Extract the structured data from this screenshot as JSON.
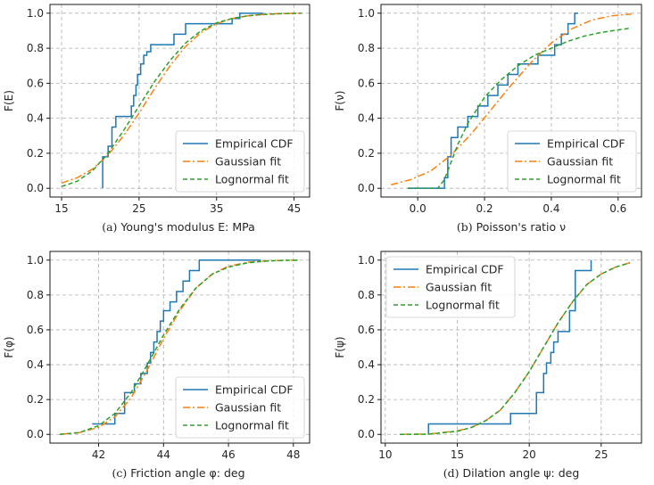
{
  "chart_data": [
    {
      "type": "line",
      "caption_prefix": "(a) ",
      "caption": "Young's modulus E: MPa",
      "ylabel": "F(E)",
      "xlim": [
        13.5,
        47
      ],
      "ylim": [
        -0.05,
        1.05
      ],
      "xticks": [
        15,
        25,
        35,
        45
      ],
      "xtick_labels": [
        "15",
        "25",
        "35",
        "45"
      ],
      "yticks": [
        0,
        0.2,
        0.4,
        0.6,
        0.8,
        1.0
      ],
      "ytick_labels": [
        "0.0",
        "0.2",
        "0.4",
        "0.6",
        "0.8",
        "1.0"
      ],
      "legend_position": "lower-right",
      "series": [
        {
          "name": "Empirical CDF",
          "style": "step",
          "color": "#1f77b4",
          "x": [
            20.3,
            20.3,
            21.0,
            21.5,
            22.0,
            24.0,
            24.3,
            24.6,
            24.8,
            25.2,
            25.6,
            26.0,
            26.5,
            27.5,
            29.5,
            31.0,
            33.0,
            37.0,
            38.0,
            41.0
          ],
          "y": [
            0.0,
            0.18,
            0.24,
            0.35,
            0.41,
            0.47,
            0.53,
            0.59,
            0.65,
            0.71,
            0.76,
            0.78,
            0.82,
            0.82,
            0.88,
            0.94,
            0.94,
            0.97,
            1.0,
            1.0
          ]
        },
        {
          "name": "Gaussian fit",
          "style": "dashdot",
          "color": "#ff7f0e",
          "x": [
            15,
            17,
            19,
            21,
            23,
            25,
            27,
            29,
            31,
            33,
            35,
            37,
            39,
            41,
            43,
            45,
            46
          ],
          "y": [
            0.03,
            0.06,
            0.11,
            0.19,
            0.3,
            0.43,
            0.57,
            0.7,
            0.81,
            0.89,
            0.94,
            0.97,
            0.985,
            0.993,
            0.997,
            0.999,
            1.0
          ]
        },
        {
          "name": "Lognormal fit",
          "style": "dashed",
          "color": "#2ca02c",
          "x": [
            15,
            17,
            19,
            21,
            23,
            25,
            27,
            29,
            31,
            33,
            35,
            37,
            39,
            41,
            43,
            45,
            46
          ],
          "y": [
            0.01,
            0.04,
            0.1,
            0.2,
            0.33,
            0.47,
            0.61,
            0.73,
            0.83,
            0.9,
            0.945,
            0.97,
            0.985,
            0.993,
            0.997,
            0.999,
            1.0
          ]
        }
      ]
    },
    {
      "type": "line",
      "caption_prefix": "(b) ",
      "caption": "Poisson's ratio ν",
      "ylabel": "F(ν)",
      "xlim": [
        -0.11,
        0.67
      ],
      "ylim": [
        -0.05,
        1.05
      ],
      "xticks": [
        0.0,
        0.2,
        0.4,
        0.6
      ],
      "xtick_labels": [
        "0.0",
        "0.2",
        "0.4",
        "0.6"
      ],
      "yticks": [
        0,
        0.2,
        0.4,
        0.6,
        0.8,
        1.0
      ],
      "ytick_labels": [
        "0.0",
        "0.2",
        "0.4",
        "0.6",
        "0.8",
        "1.0"
      ],
      "legend_position": "lower-right",
      "series": [
        {
          "name": "Empirical CDF",
          "style": "step",
          "color": "#1f77b4",
          "x": [
            -0.03,
            0.07,
            0.08,
            0.09,
            0.1,
            0.12,
            0.15,
            0.18,
            0.21,
            0.24,
            0.27,
            0.3,
            0.33,
            0.36,
            0.38,
            0.41,
            0.43,
            0.45,
            0.47,
            0.48
          ],
          "y": [
            0.0,
            0.0,
            0.06,
            0.18,
            0.29,
            0.35,
            0.41,
            0.47,
            0.53,
            0.59,
            0.65,
            0.71,
            0.71,
            0.76,
            0.76,
            0.82,
            0.88,
            0.94,
            1.0,
            1.0
          ]
        },
        {
          "name": "Gaussian fit",
          "style": "dashdot",
          "color": "#ff7f0e",
          "x": [
            -0.08,
            -0.02,
            0.04,
            0.1,
            0.16,
            0.22,
            0.28,
            0.34,
            0.4,
            0.46,
            0.52,
            0.58,
            0.64
          ],
          "y": [
            0.02,
            0.05,
            0.1,
            0.19,
            0.31,
            0.45,
            0.59,
            0.72,
            0.83,
            0.91,
            0.96,
            0.985,
            0.995
          ]
        },
        {
          "name": "Lognormal fit",
          "style": "dashed",
          "color": "#2ca02c",
          "x": [
            -0.03,
            0.06,
            0.08,
            0.1,
            0.12,
            0.15,
            0.2,
            0.25,
            0.3,
            0.35,
            0.4,
            0.45,
            0.5,
            0.55,
            0.6,
            0.64
          ],
          "y": [
            0.0,
            0.0,
            0.05,
            0.15,
            0.25,
            0.37,
            0.52,
            0.62,
            0.7,
            0.76,
            0.8,
            0.84,
            0.87,
            0.89,
            0.905,
            0.915
          ]
        }
      ]
    },
    {
      "type": "line",
      "caption_prefix": "(c) ",
      "caption": "Friction angle φ: deg",
      "ylabel": "F(φ)",
      "xlim": [
        40.5,
        48.5
      ],
      "ylim": [
        -0.05,
        1.05
      ],
      "xticks": [
        42,
        44,
        46,
        48
      ],
      "xtick_labels": [
        "42",
        "44",
        "46",
        "48"
      ],
      "yticks": [
        0,
        0.2,
        0.4,
        0.6,
        0.8,
        1.0
      ],
      "ytick_labels": [
        "0.0",
        "0.2",
        "0.4",
        "0.6",
        "0.8",
        "1.0"
      ],
      "legend_position": "lower-right",
      "series": [
        {
          "name": "Empirical CDF",
          "style": "step",
          "color": "#1f77b4",
          "x": [
            41.8,
            42.5,
            42.8,
            43.1,
            43.3,
            43.5,
            43.6,
            43.7,
            43.8,
            43.9,
            44.0,
            44.2,
            44.4,
            44.6,
            44.8,
            45.1,
            47.0
          ],
          "y": [
            0.06,
            0.12,
            0.24,
            0.29,
            0.35,
            0.41,
            0.47,
            0.53,
            0.59,
            0.65,
            0.71,
            0.76,
            0.82,
            0.88,
            0.94,
            1.0,
            1.0
          ]
        },
        {
          "name": "Gaussian fit",
          "style": "dashdot",
          "color": "#ff7f0e",
          "x": [
            40.8,
            41.4,
            42.0,
            42.5,
            43.0,
            43.5,
            44.0,
            44.5,
            45.0,
            45.5,
            46.0,
            46.6,
            47.2,
            47.8,
            48.2
          ],
          "y": [
            0.0,
            0.01,
            0.04,
            0.1,
            0.21,
            0.37,
            0.55,
            0.71,
            0.84,
            0.92,
            0.965,
            0.988,
            0.996,
            0.999,
            1.0
          ]
        },
        {
          "name": "Lognormal fit",
          "style": "dashed",
          "color": "#2ca02c",
          "x": [
            40.8,
            41.4,
            42.0,
            42.5,
            43.0,
            43.5,
            44.0,
            44.5,
            45.0,
            45.5,
            46.0,
            46.6,
            47.2,
            47.8,
            48.2
          ],
          "y": [
            0.0,
            0.01,
            0.05,
            0.12,
            0.24,
            0.4,
            0.57,
            0.72,
            0.84,
            0.92,
            0.96,
            0.985,
            0.995,
            0.999,
            1.0
          ]
        }
      ]
    },
    {
      "type": "line",
      "caption_prefix": "(d) ",
      "caption": "Dilation angle ψ: deg",
      "ylabel": "F(ψ)",
      "xlim": [
        9.7,
        27.8
      ],
      "ylim": [
        -0.05,
        1.05
      ],
      "xticks": [
        10,
        15,
        20,
        25
      ],
      "xtick_labels": [
        "10",
        "15",
        "20",
        "25"
      ],
      "yticks": [
        0,
        0.2,
        0.4,
        0.6,
        0.8,
        1.0
      ],
      "ytick_labels": [
        "0.0",
        "0.2",
        "0.4",
        "0.6",
        "0.8",
        "1.0"
      ],
      "legend_position": "upper-left",
      "series": [
        {
          "name": "Empirical CDF",
          "style": "step",
          "color": "#1f77b4",
          "x": [
            13.0,
            13.0,
            18.7,
            20.5,
            21.0,
            21.2,
            21.5,
            21.7,
            22.0,
            22.8,
            23.2,
            24.3
          ],
          "y": [
            0.0,
            0.06,
            0.12,
            0.24,
            0.35,
            0.41,
            0.47,
            0.53,
            0.59,
            0.71,
            0.94,
            1.0
          ]
        },
        {
          "name": "Gaussian fit",
          "style": "dashdot",
          "color": "#ff7f0e",
          "x": [
            11,
            13,
            15,
            16,
            17,
            18,
            19,
            20,
            21,
            22,
            23,
            24,
            25,
            26,
            27
          ],
          "y": [
            0.0,
            0.002,
            0.02,
            0.04,
            0.08,
            0.14,
            0.24,
            0.36,
            0.5,
            0.64,
            0.76,
            0.86,
            0.92,
            0.96,
            0.985
          ]
        },
        {
          "name": "Lognormal fit",
          "style": "dashed",
          "color": "#2ca02c",
          "x": [
            11,
            13,
            15,
            16,
            17,
            18,
            19,
            20,
            21,
            22,
            23,
            24,
            25,
            26,
            27
          ],
          "y": [
            0.0,
            0.001,
            0.018,
            0.04,
            0.08,
            0.14,
            0.24,
            0.36,
            0.5,
            0.64,
            0.76,
            0.86,
            0.92,
            0.96,
            0.985
          ]
        }
      ]
    }
  ]
}
